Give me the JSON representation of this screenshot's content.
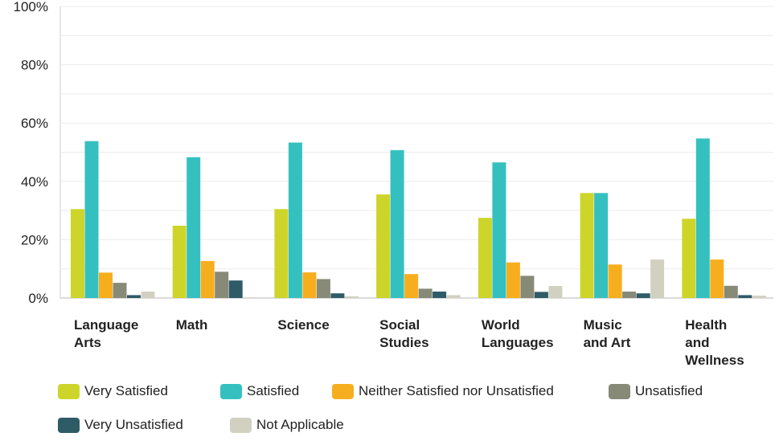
{
  "chart_data": {
    "type": "bar",
    "categories": [
      [
        "Language",
        "Arts"
      ],
      [
        "Math"
      ],
      [
        "Science"
      ],
      [
        "Social",
        "Studies"
      ],
      [
        "World",
        "Languages"
      ],
      [
        "Music",
        "and Art"
      ],
      [
        "Health",
        "and",
        "Wellness"
      ]
    ],
    "series": [
      {
        "name": "Very Satisfied",
        "color": "#cdd52b",
        "values": [
          30.5,
          24.8,
          30.5,
          35.5,
          27.5,
          36.0,
          27.2
        ]
      },
      {
        "name": "Satisfied",
        "color": "#35c0c0",
        "values": [
          53.8,
          48.3,
          53.3,
          50.7,
          46.5,
          36.0,
          54.7
        ]
      },
      {
        "name": "Neither Satisfied nor Unsatisfied",
        "color": "#f7ae1e",
        "values": [
          8.7,
          12.7,
          8.8,
          8.2,
          12.2,
          11.5,
          13.2
        ]
      },
      {
        "name": "Unsatisfied",
        "color": "#888a78",
        "values": [
          5.2,
          9.0,
          6.5,
          3.2,
          7.6,
          2.2,
          4.2
        ]
      },
      {
        "name": "Very Unsatisfied",
        "color": "#2f5b67",
        "values": [
          1.0,
          6.0,
          1.6,
          2.2,
          2.1,
          1.6,
          1.0
        ]
      },
      {
        "name": "Not Applicable",
        "color": "#d2d1c1",
        "values": [
          2.2,
          0.2,
          0.6,
          1.0,
          4.1,
          13.2,
          0.8
        ]
      }
    ],
    "y_ticks": [
      "0%",
      "20%",
      "40%",
      "60%",
      "80%",
      "100%"
    ],
    "ylim": [
      0,
      100
    ],
    "grid": true,
    "legend_position": "bottom"
  }
}
